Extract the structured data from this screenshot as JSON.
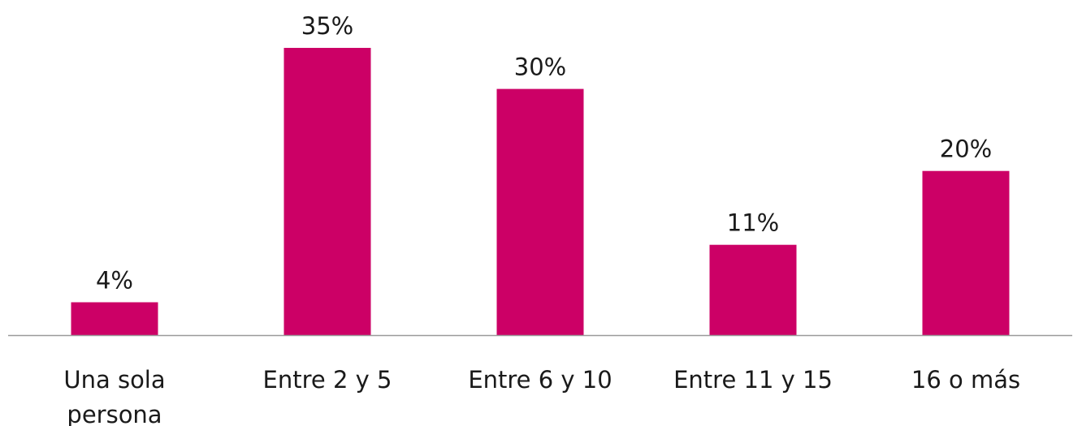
{
  "chart_data": {
    "type": "bar",
    "title": "",
    "xlabel": "",
    "ylabel": "",
    "categories": [
      "Una sola persona",
      "Entre 2 y 5",
      "Entre 6 y 10",
      "Entre 11 y 15",
      "16 o más"
    ],
    "category_lines": [
      [
        "Una sola",
        "persona"
      ],
      [
        "Entre 2 y 5"
      ],
      [
        "Entre 6 y 10"
      ],
      [
        "Entre 11 y 15"
      ],
      [
        "16 o más"
      ]
    ],
    "values": [
      4,
      35,
      30,
      11,
      20
    ],
    "value_labels": [
      "4%",
      "35%",
      "30%",
      "11%",
      "20%"
    ],
    "unit": "%",
    "ylim": [
      0,
      35
    ],
    "grid": false,
    "legend": "none",
    "colors": {
      "bar": "#CC0066",
      "axis": "#9a9a9a",
      "text": "#1a1a1a"
    }
  }
}
